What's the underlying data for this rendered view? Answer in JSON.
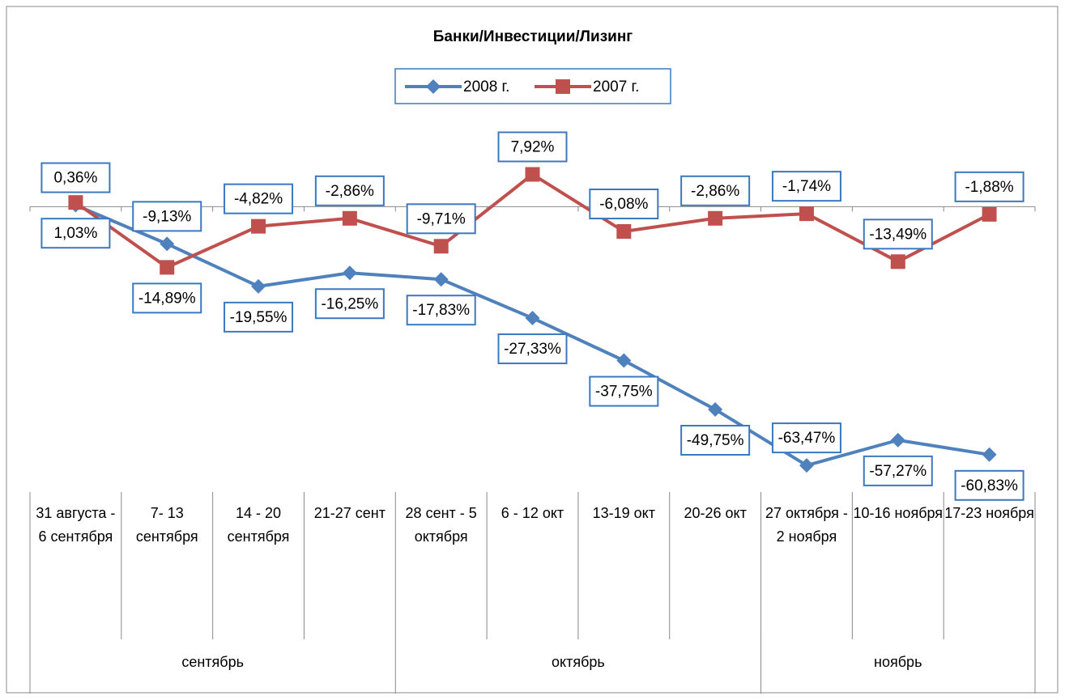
{
  "chart_data": {
    "type": "line",
    "title": "Банки/Инвестиции/Лизинг",
    "categories": [
      "31 августа - 6 сентября",
      "7- 13 сентября",
      "14 - 20 сентября",
      "21-27 сент",
      "28 сент - 5 октября",
      "6 - 12 окт",
      "13-19 окт",
      "20-26 окт",
      "27 октября - 2 ноября",
      "10-16 ноября",
      "17-23 ноября"
    ],
    "category_groups": [
      {
        "name": "сентябрь",
        "span": 4
      },
      {
        "name": "октябрь",
        "span": 4
      },
      {
        "name": "ноябрь",
        "span": 3
      }
    ],
    "series": [
      {
        "name": "2008 г.",
        "color": "#4f81bd",
        "marker": "diamond",
        "values": [
          0.36,
          -9.13,
          -19.55,
          -16.25,
          -17.83,
          -27.33,
          -37.75,
          -49.75,
          -63.47,
          -57.27,
          -60.83
        ],
        "value_labels": [
          "0,36%",
          "-9,13%",
          "-19,55%",
          "-16,25%",
          "-17,83%",
          "-27,33%",
          "-37,75%",
          "-49,75%",
          "-63,47%",
          "-57,27%",
          "-60,83%"
        ]
      },
      {
        "name": "2007 г.",
        "color": "#c0504d",
        "marker": "square",
        "values": [
          1.03,
          -14.89,
          -4.82,
          -2.86,
          -9.71,
          7.92,
          -6.08,
          -2.86,
          -1.74,
          -13.49,
          -1.88
        ],
        "value_labels": [
          "1,03%",
          "-14,89%",
          "-4,82%",
          "-2,86%",
          "-9,71%",
          "7,92%",
          "-6,08%",
          "-2,86%",
          "-1,74%",
          "-13,49%",
          "-1,88%"
        ]
      }
    ],
    "ylim": [
      -70,
      10
    ],
    "legend": "top"
  }
}
